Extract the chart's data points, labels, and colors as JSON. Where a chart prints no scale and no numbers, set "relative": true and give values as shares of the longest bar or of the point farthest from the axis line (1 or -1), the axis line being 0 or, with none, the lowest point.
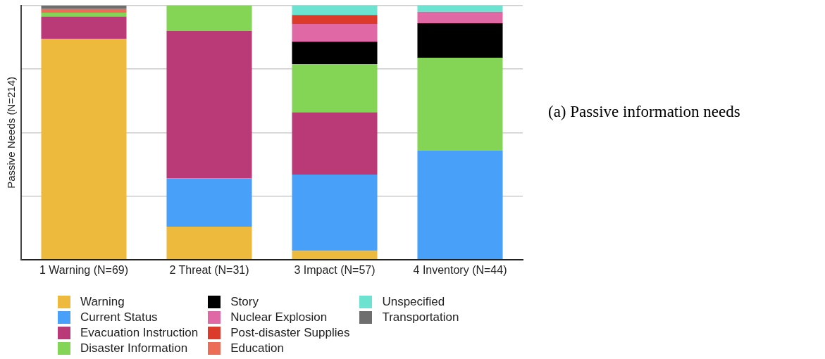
{
  "chart_data": {
    "type": "bar",
    "stacked": true,
    "relative": true,
    "grid": "y",
    "legend": "bottom",
    "ylabel": "Passive Needs (N=214)",
    "categories": [
      "1 Warning (N=69)",
      "2 Threat (N=31)",
      "3 Impact (N=57)",
      "4 Inventory (N=44)"
    ],
    "series": [
      {
        "name": "Warning",
        "color": "#eeba3e",
        "values": [
          0.87,
          0.13,
          0.035,
          null
        ]
      },
      {
        "name": "Current Status",
        "color": "#48a0f8",
        "values": [
          null,
          0.19,
          0.3,
          0.43
        ]
      },
      {
        "name": "Evacuation Instruction",
        "color": "#b93a77",
        "values": [
          0.087,
          0.58,
          0.245,
          null
        ]
      },
      {
        "name": "Disaster Information",
        "color": "#84d455",
        "values": [
          0.015,
          0.1,
          0.19,
          0.365
        ]
      },
      {
        "name": "Story",
        "color": "#000000",
        "values": [
          null,
          null,
          0.088,
          0.136
        ]
      },
      {
        "name": "Nuclear Explosion",
        "color": "#e069a5",
        "values": [
          null,
          null,
          0.07,
          0.045
        ]
      },
      {
        "name": "Post-disaster Supplies",
        "color": "#dc3a2a",
        "values": [
          null,
          null,
          0.035,
          null
        ]
      },
      {
        "name": "Education",
        "color": "#ec6d55",
        "values": [
          0.015,
          null,
          null,
          null
        ]
      },
      {
        "name": "Unspecified",
        "color": "#6ce3d0",
        "values": [
          null,
          null,
          0.037,
          0.024
        ]
      },
      {
        "name": "Transportation",
        "color": "#6e6e6e",
        "values": [
          0.013,
          null,
          null,
          null
        ]
      }
    ],
    "annotations": [
      "(a) Passive information needs"
    ]
  }
}
